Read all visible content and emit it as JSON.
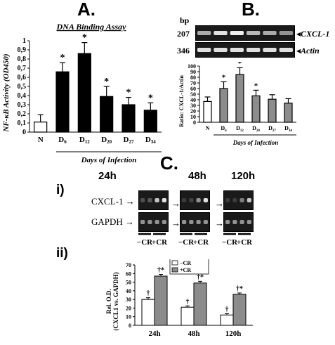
{
  "panels": {
    "a_letter": "A.",
    "b_letter": "B.",
    "c_letter": "C.",
    "ci_label": "i)",
    "cii_label": "ii)"
  },
  "panel_a": {
    "title": "DNA Binding Assay",
    "ylabel": "NF-κB Activity (OD450)",
    "xlabel": "Days of Infection",
    "sig": "*"
  },
  "panel_b": {
    "bp_label": "bp",
    "bp_207": "207",
    "bp_346": "346",
    "gene1": "CXCL-1",
    "gene2": "Actin",
    "ylabel": "Ratio: CXCL-1/Actin",
    "xlabel": "Days of Infection"
  },
  "panel_c": {
    "times": [
      "24h",
      "48h",
      "120h"
    ],
    "gene1": "CXCL-1",
    "gene2": "GAPDH",
    "lane_labels": [
      "−CR",
      "+CR"
    ],
    "legend": [
      "−CR",
      "+CR"
    ],
    "ylabel1": "Rel. O.D.",
    "ylabel2": "(CXCL1 vs. GAPDH)"
  },
  "chart_data": [
    {
      "type": "bar",
      "title": "DNA Binding Assay",
      "xlabel": "Days of Infection",
      "ylabel": "NF-κB Activity (OD450)",
      "categories": [
        "N",
        "D6",
        "D12",
        "D20",
        "D27",
        "D34"
      ],
      "values": [
        0.11,
        0.66,
        0.86,
        0.39,
        0.3,
        0.24
      ],
      "errors": [
        0.08,
        0.1,
        0.12,
        0.11,
        0.08,
        0.08
      ],
      "significance": [
        "",
        "*",
        "*",
        "*",
        "*",
        "*"
      ],
      "colors": [
        "#ffffff",
        "#000000",
        "#000000",
        "#000000",
        "#000000",
        "#000000"
      ],
      "ylim": [
        0,
        1.0
      ],
      "yticks": [
        "0",
        "0,1",
        "0,2",
        "0,3",
        "0,4",
        "0,5",
        "0,6",
        "0,7",
        "0,8",
        "0,9",
        "1"
      ]
    },
    {
      "type": "bar",
      "xlabel": "Days of Infection",
      "ylabel": "Ratio: CXCL-1/Actin",
      "categories": [
        "N",
        "D6",
        "D12",
        "D20",
        "D27",
        "D34"
      ],
      "values": [
        37,
        60,
        85,
        47,
        41,
        34
      ],
      "errors": [
        8,
        12,
        12,
        10,
        8,
        8
      ],
      "significance": [
        "",
        "*",
        "*",
        "*",
        "",
        ""
      ],
      "colors": [
        "#ffffff",
        "#8c8c8c",
        "#8c8c8c",
        "#8c8c8c",
        "#8c8c8c",
        "#8c8c8c"
      ],
      "ylim": [
        0,
        100
      ],
      "yticks": [
        "0",
        "10",
        "20",
        "30",
        "40",
        "50",
        "60",
        "70",
        "80",
        "90",
        "100"
      ]
    },
    {
      "type": "bar",
      "ylabel": "Rel. O.D. (CXCL1 vs. GAPDH)",
      "categories": [
        "24h",
        "48h",
        "120h"
      ],
      "series": [
        {
          "name": "−CR",
          "values": [
            30,
            21,
            12
          ],
          "errors": [
            2,
            1.5,
            1.5
          ],
          "marks": [
            "†",
            "†",
            "†"
          ],
          "color": "#ffffff"
        },
        {
          "name": "+CR",
          "values": [
            57,
            49,
            36
          ],
          "errors": [
            2,
            2,
            1.5
          ],
          "marks": [
            "†*",
            "†*",
            "†*"
          ],
          "color": "#8c8c8c"
        }
      ],
      "ylim": [
        0,
        70
      ],
      "yticks": [
        "0",
        "10",
        "20",
        "30",
        "40",
        "50",
        "60",
        "70"
      ]
    }
  ]
}
